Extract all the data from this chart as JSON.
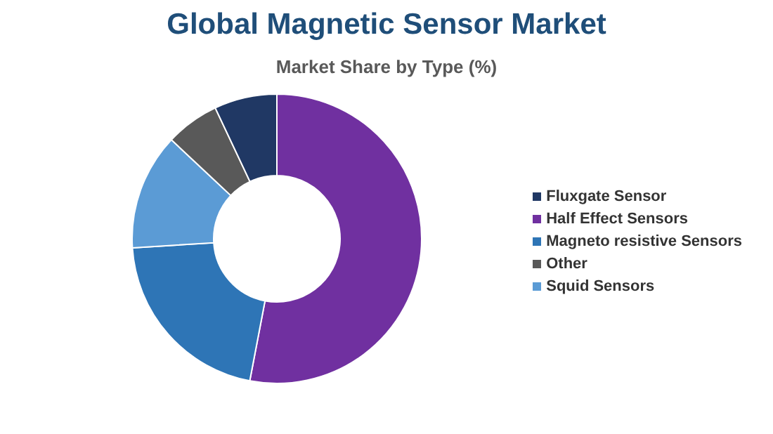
{
  "chart_data": {
    "type": "donut",
    "title": "Global Magnetic Sensor Market",
    "subtitle": "Market Share by Type (%)",
    "categories": [
      "Half Effect Sensors",
      "Magneto resistive Sensors",
      "Squid Sensors",
      "Other",
      "Fluxgate Sensor"
    ],
    "values": [
      53,
      21,
      13,
      6,
      7
    ],
    "colors": [
      "#7030a0",
      "#2e75b6",
      "#5b9bd5",
      "#595959",
      "#203864"
    ],
    "legend": "right"
  }
}
